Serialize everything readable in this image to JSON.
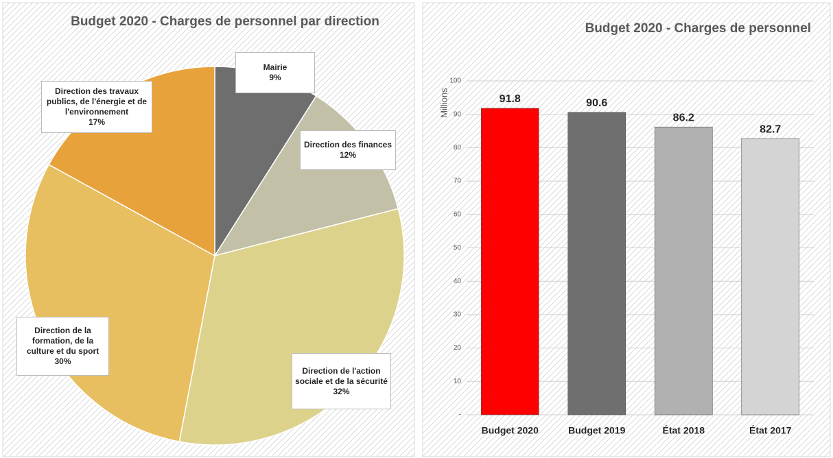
{
  "chart_data": [
    {
      "type": "pie",
      "title": "Budget 2020 - Charges de personnel par direction",
      "categories": [
        "Mairie",
        "Direction des finances",
        "Direction de l'action sociale et de la sécurité",
        "Direction de la formation, de la culture et du sport",
        "Direction des travaux publics, de l'énergie et de l'environnement"
      ],
      "values": [
        9,
        12,
        32,
        30,
        17
      ],
      "value_labels": [
        "9%",
        "12%",
        "32%",
        "30%",
        "17%"
      ],
      "colors": [
        "#6e6e6e",
        "#c2c0a6",
        "#ddd28c",
        "#e8bf60",
        "#e8a23b"
      ]
    },
    {
      "type": "bar",
      "title": "Budget 2020 - Charges de personnel",
      "ylabel": "Millions",
      "categories": [
        "Budget 2020",
        "Budget 2019",
        "État 2018",
        "État 2017"
      ],
      "values": [
        91.8,
        90.6,
        86.2,
        82.7
      ],
      "colors": [
        "#ff0000",
        "#6f6f6f",
        "#b1b1b1",
        "#d4d4d4"
      ],
      "ylim": [
        0,
        100
      ],
      "yticks": [
        {
          "value": 0,
          "label": "-"
        },
        10,
        20,
        30,
        40,
        50,
        60,
        70,
        80,
        90,
        100
      ],
      "grid": true
    }
  ]
}
